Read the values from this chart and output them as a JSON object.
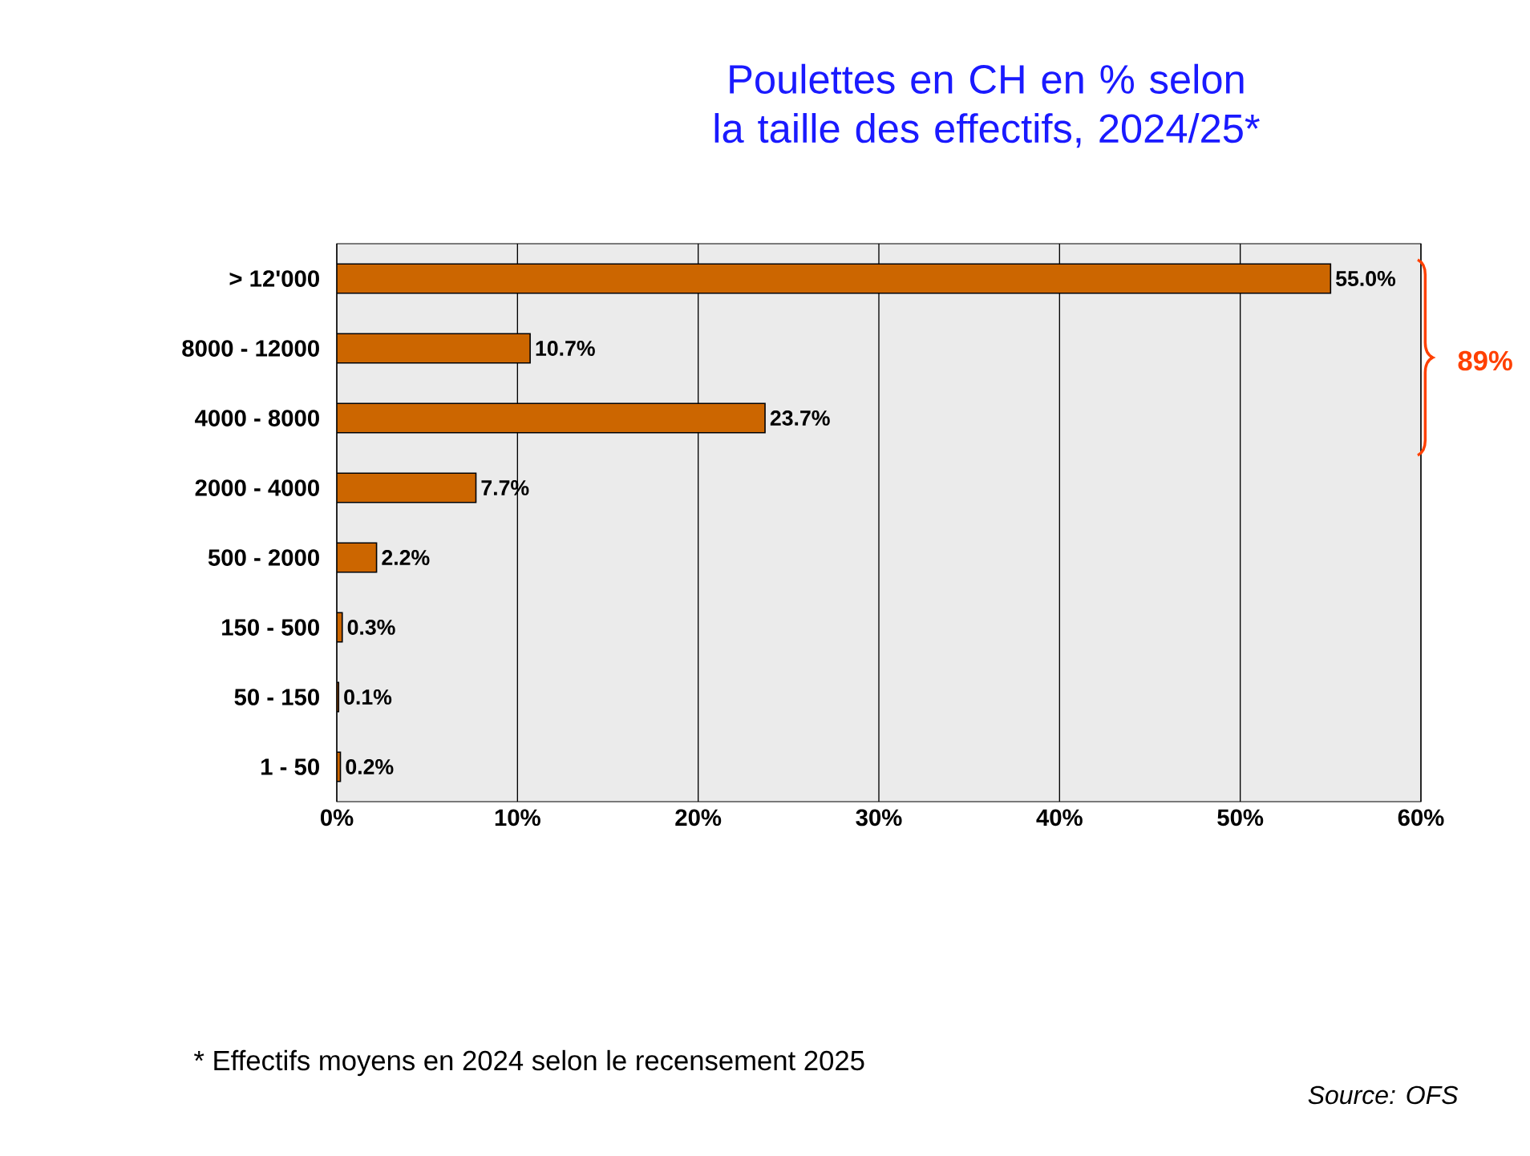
{
  "chart_data": {
    "type": "bar",
    "orientation": "horizontal",
    "title": "Poulettes en CH en % selon la taille des effectifs, 2024/25*",
    "categories": [
      "> 12'000",
      "8000 - 12000",
      "4000 - 8000",
      "2000 - 4000",
      "500 - 2000",
      "150 - 500",
      "50 - 150",
      "1 - 50"
    ],
    "values": [
      55.0,
      10.7,
      23.7,
      7.7,
      2.2,
      0.3,
      0.1,
      0.2
    ],
    "value_labels": [
      "55.0%",
      "10.7%",
      "23.7%",
      "7.7%",
      "2.2%",
      "0.3%",
      "0.1%",
      "0.2%"
    ],
    "color": "#cc6600",
    "xlim": [
      0,
      60
    ],
    "xticks": [
      {
        "value": 0,
        "label": "0%"
      },
      {
        "value": 10,
        "label": "10%"
      },
      {
        "value": 20,
        "label": "20%"
      },
      {
        "value": 30,
        "label": "30%"
      },
      {
        "value": 40,
        "label": "40%"
      },
      {
        "value": 50,
        "label": "50%"
      },
      {
        "value": 60,
        "label": "60%"
      }
    ],
    "grid": "x",
    "annotations": [
      "89%",
      "* Effectifs moyens en 2024 selon le recensement 2025",
      "Source: OFS"
    ]
  }
}
